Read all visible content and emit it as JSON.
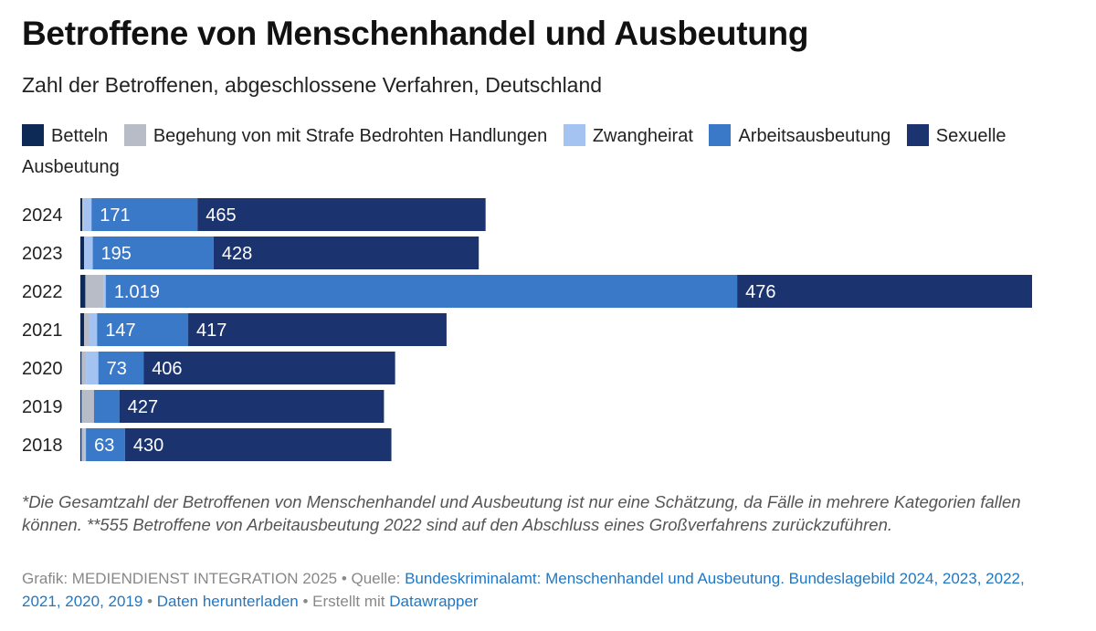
{
  "header": {
    "title": "Betroffene von Menschenhandel und Ausbeutung",
    "subtitle": "Zahl der Betroffenen, abgeschlossene Verfahren, Deutschland"
  },
  "legend": [
    {
      "label": "Betteln",
      "color": "#0d2a57"
    },
    {
      "label": "Begehung von mit Strafe Bedrohten Handlungen",
      "color": "#b7bcc6"
    },
    {
      "label": "Zwangheirat",
      "color": "#a5c3f0"
    },
    {
      "label": "Arbeitsausbeutung",
      "color": "#3a78c8"
    },
    {
      "label": "Sexuelle Ausbeutung",
      "color": "#1b346f"
    }
  ],
  "chart_data": {
    "type": "bar",
    "orientation": "horizontal",
    "stacked": true,
    "categories": [
      "2024",
      "2023",
      "2022",
      "2021",
      "2020",
      "2019",
      "2018"
    ],
    "series": [
      {
        "name": "Betteln",
        "color": "#0d2a57",
        "values": [
          3,
          6,
          8,
          6,
          2,
          2,
          2
        ]
      },
      {
        "name": "Begehung von mit Strafe Bedrohten Handlungen",
        "color": "#b7bcc6",
        "values": [
          2,
          0,
          30,
          8,
          7,
          20,
          5
        ]
      },
      {
        "name": "Zwangheirat",
        "color": "#a5c3f0",
        "values": [
          13,
          14,
          3,
          13,
          20,
          0,
          2
        ]
      },
      {
        "name": "Arbeitsausbeutung",
        "color": "#3a78c8",
        "values": [
          171,
          195,
          1019,
          147,
          73,
          41,
          63
        ]
      },
      {
        "name": "Sexuelle Ausbeutung",
        "color": "#1b346f",
        "values": [
          465,
          428,
          476,
          417,
          406,
          427,
          430
        ]
      }
    ],
    "value_labels": [
      [
        null,
        null,
        null,
        "171",
        "465"
      ],
      [
        null,
        null,
        null,
        "195",
        "428"
      ],
      [
        null,
        null,
        null,
        "1.019",
        "476"
      ],
      [
        null,
        null,
        null,
        "147",
        "417"
      ],
      [
        null,
        null,
        null,
        "73",
        "406"
      ],
      [
        null,
        null,
        null,
        null,
        "427"
      ],
      [
        null,
        null,
        null,
        "63",
        "430"
      ]
    ],
    "xlim": [
      0,
      1536
    ],
    "grid": false,
    "legend_position": "top"
  },
  "notes": "*Die Gesamtzahl der Betroffenen von Menschenhandel und Ausbeutung ist nur eine Schätzung, da Fälle in mehrere Kategorien fallen können. **555 Betroffene von Arbeitausbeutung 2022 sind auf den Abschluss eines Großverfahrens zurückzuführen.",
  "footer": {
    "graphic_prefix": "Grafik: MEDIENDIENST INTEGRATION 2025 • Quelle: ",
    "source_link": "Bundeskriminalamt: Menschenhandel und Ausbeutung. Bundeslagebild 2024, 2023, 2022, 2021, 2020, 2019",
    "sep1": " • ",
    "download_link": "Daten herunterladen",
    "sep2": " • Erstellt mit ",
    "datawrapper_link": "Datawrapper"
  }
}
